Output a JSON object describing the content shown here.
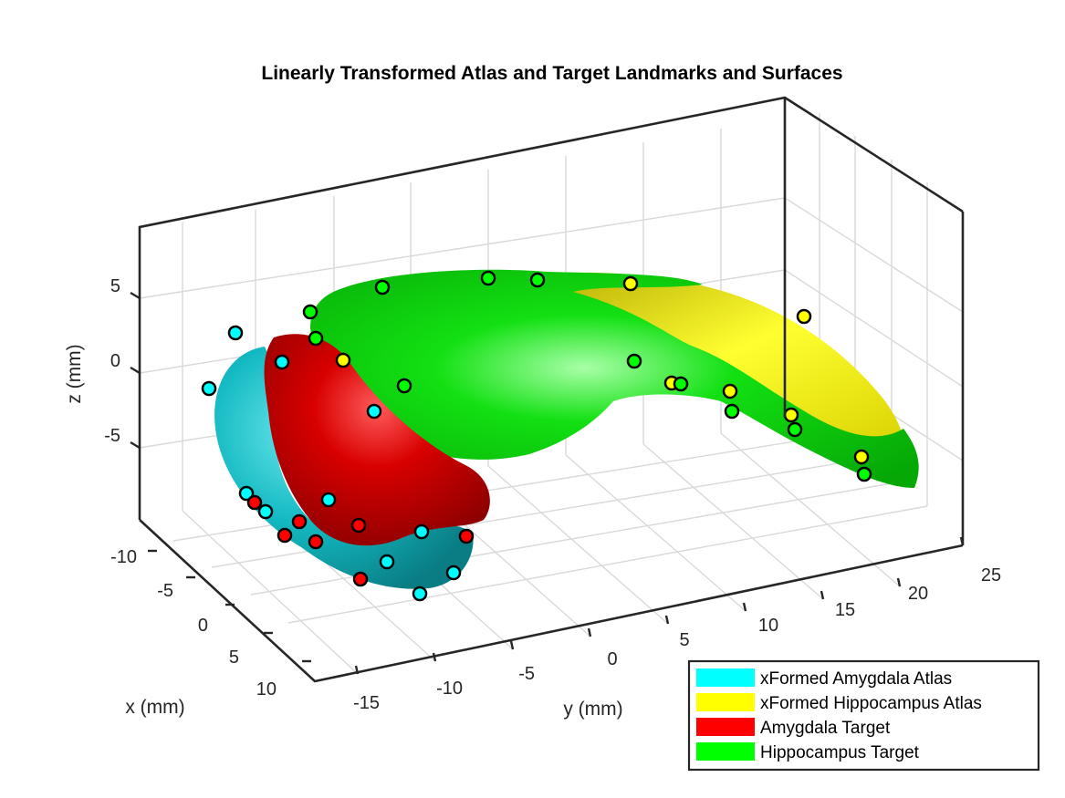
{
  "chart_data": {
    "type": "scatter",
    "title": "Linearly Transformed Atlas and Target Landmarks and Surfaces",
    "xlabel": "x (mm)",
    "ylabel": "y (mm)",
    "zlabel": "z (mm)",
    "x_ticks": [
      "-10",
      "-5",
      "0",
      "5",
      "10"
    ],
    "y_ticks": [
      "-15",
      "-10",
      "-5",
      "0",
      "5",
      "10",
      "15",
      "20",
      "25"
    ],
    "z_ticks": [
      "5",
      "0",
      "-5"
    ],
    "grid": true,
    "legend_position": "bottom-right",
    "series": [
      {
        "name": "xFormed Amygdala Atlas",
        "color": "#00ffff",
        "marker": "circle"
      },
      {
        "name": "xFormed Hippocampus Atlas",
        "color": "#ffff00",
        "marker": "circle"
      },
      {
        "name": "Amygdala Target",
        "color": "#ff0000",
        "marker": "circle"
      },
      {
        "name": "Hippocampus Target",
        "color": "#00ff00",
        "marker": "circle"
      }
    ]
  }
}
